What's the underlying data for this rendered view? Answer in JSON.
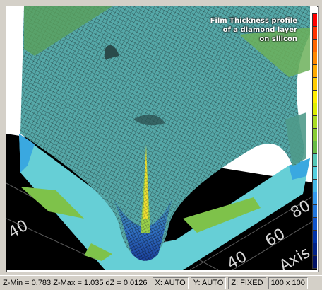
{
  "plot": {
    "title_lines": [
      "Film Thickness profile",
      "of a diamond layer",
      "on silicon"
    ],
    "axis_ticks": [
      "40",
      "40",
      "60",
      "80"
    ],
    "axis_label": "Axis",
    "colorbar": [
      "#ff0000",
      "#ff3300",
      "#ff6600",
      "#ff8800",
      "#ffaa00",
      "#ffcc00",
      "#ffee00",
      "#ddee00",
      "#aadd22",
      "#88cc33",
      "#66bb44",
      "#55c8b8",
      "#55d0e0",
      "#44b8e8",
      "#3399ee",
      "#2277dd",
      "#1155cc",
      "#0033aa",
      "#002288",
      "#001166"
    ]
  },
  "statusbar": {
    "stats": "Z-Min = 0.783  Z-Max = 1.035  dZ = 0.0126",
    "x_mode": "X: AUTO",
    "y_mode": "Y: AUTO",
    "z_mode": "Z: FIXED",
    "grid": "100 x 100"
  }
}
